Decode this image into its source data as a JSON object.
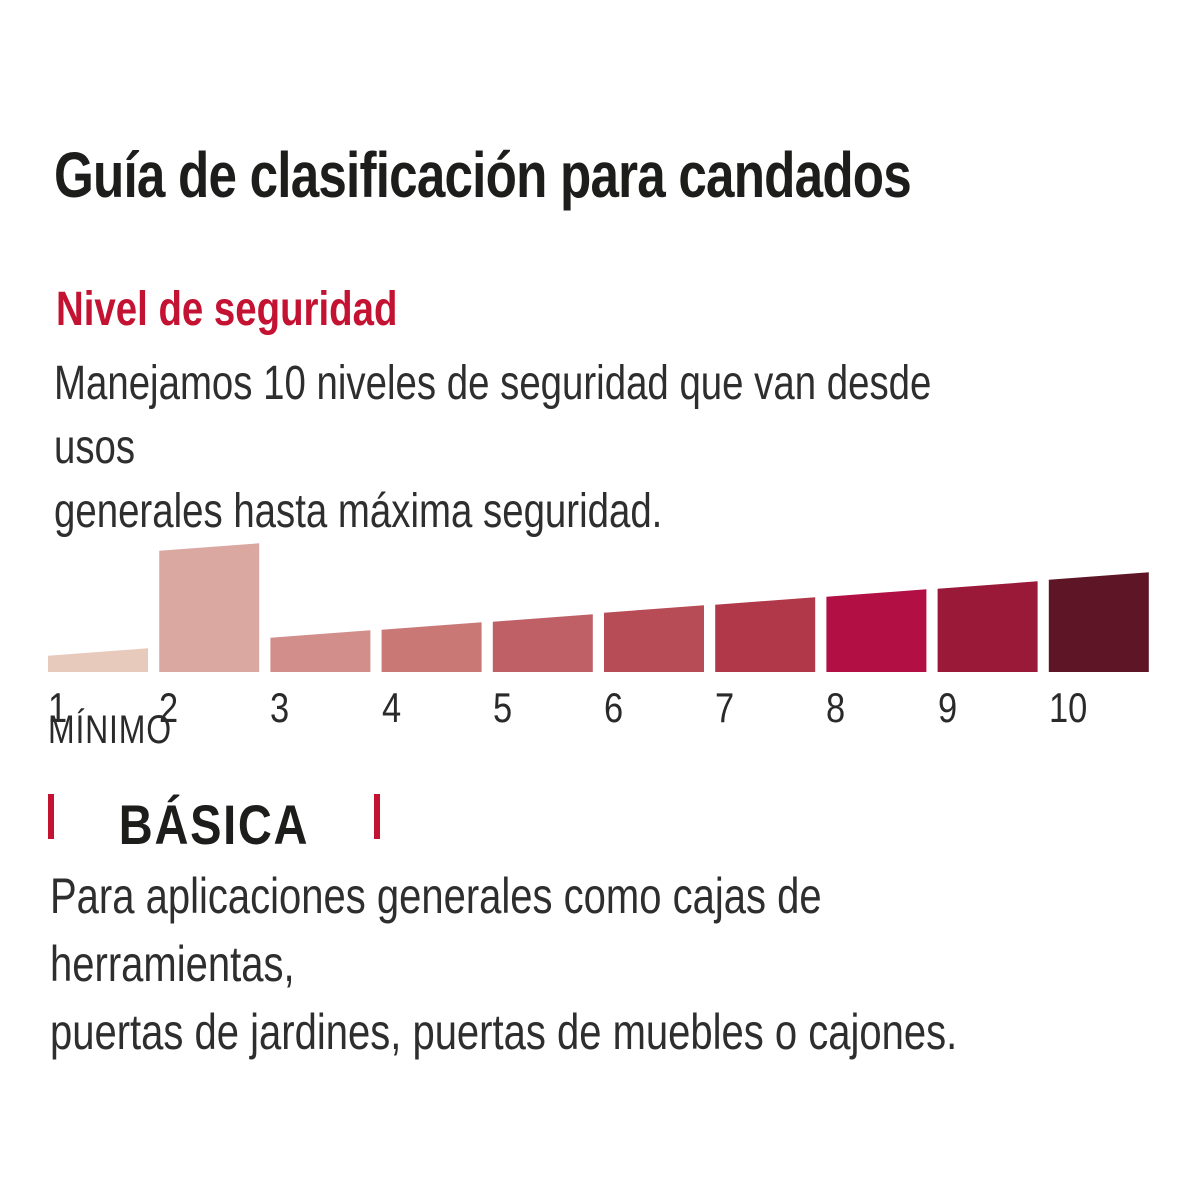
{
  "page": {
    "title": "Guía de clasificación para candados",
    "section_heading": "Nivel de seguridad",
    "intro_text": "Manejamos 10 niveles de seguridad que van desde usos\ngenerales hasta máxima seguridad.",
    "category_label": "BÁSICA",
    "category_description": "Para aplicaciones generales como cajas de herramientas,\npuertas de jardines, puertas de muebles o cajones."
  },
  "colors": {
    "accent_red": "#C41232",
    "title_text": "#1d1d1b",
    "body_text": "#2e2e2e"
  },
  "chart_data": {
    "type": "bar",
    "title": "Nivel de seguridad",
    "categories": [
      "1",
      "2",
      "3",
      "4",
      "5",
      "6",
      "7",
      "8",
      "9",
      "10"
    ],
    "values": [
      20,
      125,
      38,
      46,
      54,
      63,
      71,
      79,
      87,
      96
    ],
    "highlighted_level": 2,
    "min_label": "MÍNIMO",
    "bar_colors": [
      "#E8CABD",
      "#DBA8A1",
      "#D18E8A",
      "#C97876",
      "#BF6067",
      "#B74C57",
      "#B13848",
      "#B21045",
      "#9A1838",
      "#5E1526"
    ],
    "xlabel": "",
    "ylabel": "",
    "axis_visible": false,
    "grid": false,
    "legend": false,
    "note_shape": "bars have slanted tops rising left-to-right; level 2 bar is highlighted taller"
  }
}
